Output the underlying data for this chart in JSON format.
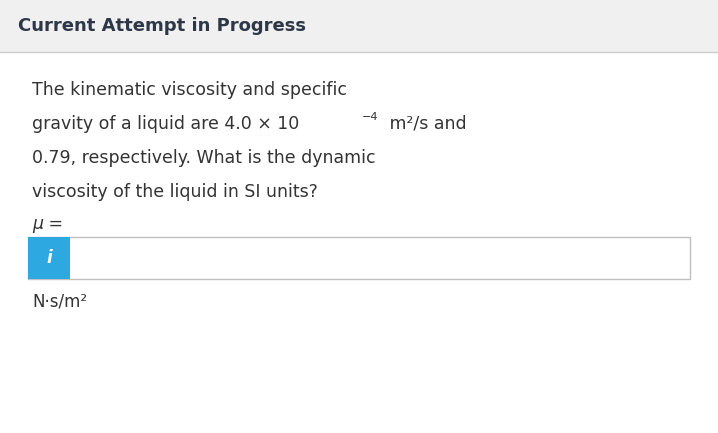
{
  "title": "Current Attempt in Progress",
  "title_fontsize": 13,
  "title_fontweight": "bold",
  "title_color": "#2d3748",
  "bg_color": "#f0f0f0",
  "content_bg": "#ffffff",
  "divider_color": "#cccccc",
  "line1": "The kinematic viscosity and specific",
  "line2a": "gravity of a liquid are 4.0 × 10",
  "line2_sup": "−4",
  "line2b": " m²/s and",
  "line3": "0.79, respectively. What is the dynamic",
  "line4": "viscosity of the liquid in SI units?",
  "mu_label": "μ =",
  "units_label": "N·s/m²",
  "body_fontsize": 12.5,
  "mu_fontsize": 12.5,
  "units_fontsize": 12,
  "input_box_fill": "#ffffff",
  "input_border_color": "#c0c0c0",
  "info_box_color": "#2da8e0",
  "info_text": "i",
  "info_text_color": "#ffffff",
  "text_color": "#333333"
}
